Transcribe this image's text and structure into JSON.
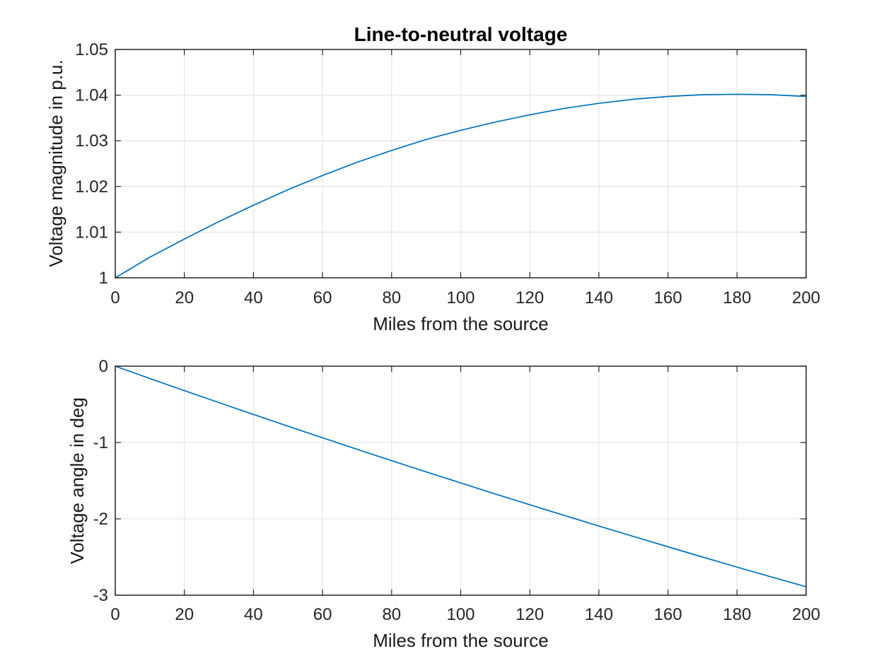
{
  "figure": {
    "background_color": "#ffffff",
    "line_color": "#0072BD",
    "axis_color": "#262626",
    "grid_color": "#e6e6e6",
    "tick_label_color": "#262626",
    "label_color": "#1a1a1a"
  },
  "chart_data": [
    {
      "type": "line",
      "title": "Line-to-neutral voltage",
      "xlabel": "Miles from the source",
      "ylabel": "Voltage magnitude in p.u.",
      "xlim": [
        0,
        200
      ],
      "ylim": [
        1,
        1.05
      ],
      "grid": true,
      "legend_position": "none",
      "xticks": [
        0,
        20,
        40,
        60,
        80,
        100,
        120,
        140,
        160,
        180,
        200
      ],
      "xtick_labels": [
        "0",
        "20",
        "40",
        "60",
        "80",
        "100",
        "120",
        "140",
        "160",
        "180",
        "200"
      ],
      "yticks": [
        1,
        1.01,
        1.02,
        1.03,
        1.04,
        1.05
      ],
      "ytick_labels": [
        "1",
        "1.01",
        "1.02",
        "1.03",
        "1.04",
        "1.05"
      ],
      "series": [
        {
          "name": "voltage-magnitude",
          "color": "#0072BD",
          "x": [
            0,
            10,
            20,
            30,
            40,
            50,
            60,
            70,
            80,
            90,
            100,
            110,
            120,
            130,
            140,
            150,
            160,
            170,
            180,
            190,
            200
          ],
          "y": [
            1.0,
            1.0045,
            1.0085,
            1.0123,
            1.0159,
            1.0193,
            1.0224,
            1.0253,
            1.0279,
            1.0303,
            1.0323,
            1.0341,
            1.0357,
            1.0371,
            1.0382,
            1.0391,
            1.0397,
            1.0401,
            1.0402,
            1.0401,
            1.0397
          ]
        }
      ]
    },
    {
      "type": "line",
      "title": "",
      "xlabel": "Miles from the source",
      "ylabel": "Voltage angle in deg",
      "xlim": [
        0,
        200
      ],
      "ylim": [
        -3,
        0
      ],
      "grid": true,
      "legend_position": "none",
      "xticks": [
        0,
        20,
        40,
        60,
        80,
        100,
        120,
        140,
        160,
        180,
        200
      ],
      "xtick_labels": [
        "0",
        "20",
        "40",
        "60",
        "80",
        "100",
        "120",
        "140",
        "160",
        "180",
        "200"
      ],
      "yticks": [
        0,
        -1,
        -2,
        -3
      ],
      "ytick_labels": [
        "0",
        "-1",
        "-2",
        "-3"
      ],
      "series": [
        {
          "name": "voltage-angle",
          "color": "#0072BD",
          "x": [
            0,
            10,
            20,
            30,
            40,
            50,
            60,
            70,
            80,
            90,
            100,
            110,
            120,
            130,
            140,
            150,
            160,
            170,
            180,
            190,
            200
          ],
          "y": [
            0,
            -0.161,
            -0.32,
            -0.477,
            -0.632,
            -0.786,
            -0.938,
            -1.089,
            -1.238,
            -1.385,
            -1.53,
            -1.674,
            -1.816,
            -1.956,
            -2.094,
            -2.231,
            -2.366,
            -2.5,
            -2.632,
            -2.762,
            -2.89
          ]
        }
      ]
    }
  ]
}
